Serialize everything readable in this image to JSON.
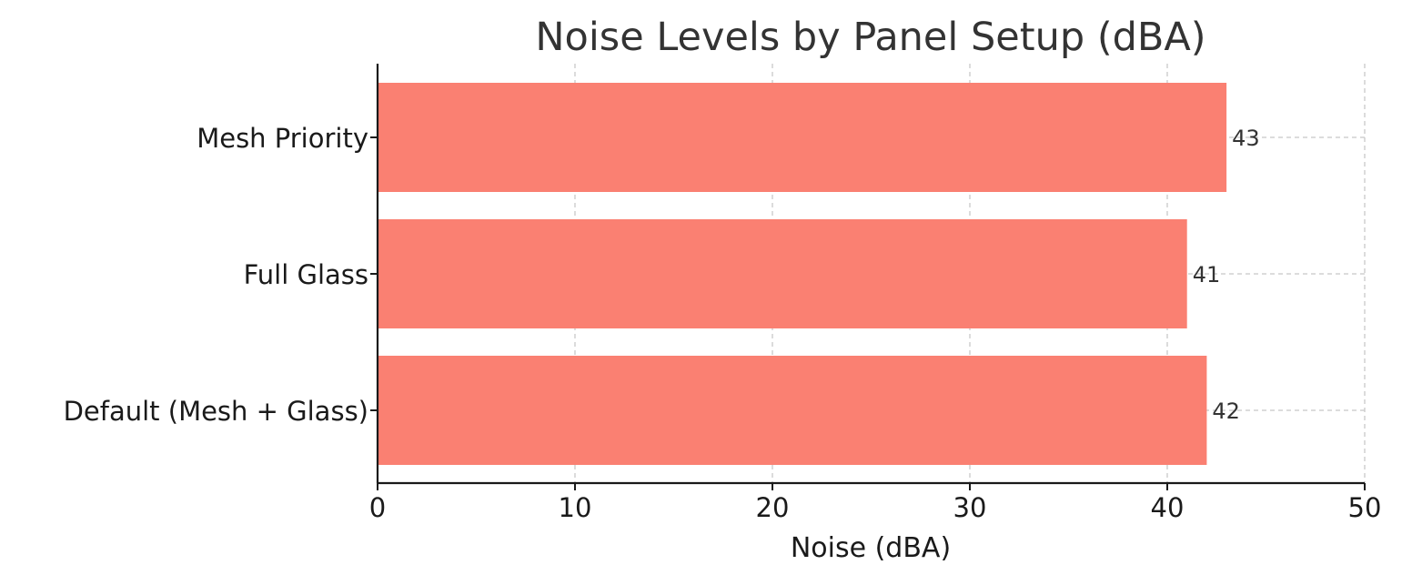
{
  "chart_data": {
    "type": "bar",
    "orientation": "horizontal",
    "title": "Noise Levels by Panel Setup (dBA)",
    "xlabel": "Noise (dBA)",
    "ylabel": "",
    "categories": [
      "Default (Mesh + Glass)",
      "Full Glass",
      "Mesh Priority"
    ],
    "values": [
      42,
      41,
      43
    ],
    "data_labels": [
      "42",
      "41",
      "43"
    ],
    "xlim": [
      0,
      50
    ],
    "xticks": [
      0,
      10,
      20,
      30,
      40,
      50
    ],
    "xtick_labels": [
      "0",
      "10",
      "20",
      "30",
      "40",
      "50"
    ],
    "grid": true,
    "grid_style": "dashed",
    "legend": "none",
    "bar_color": "#fa8072",
    "axis_color": "#1a1a1a",
    "grid_color": "#c8c8c8",
    "text_color": "#1a1a1a"
  }
}
